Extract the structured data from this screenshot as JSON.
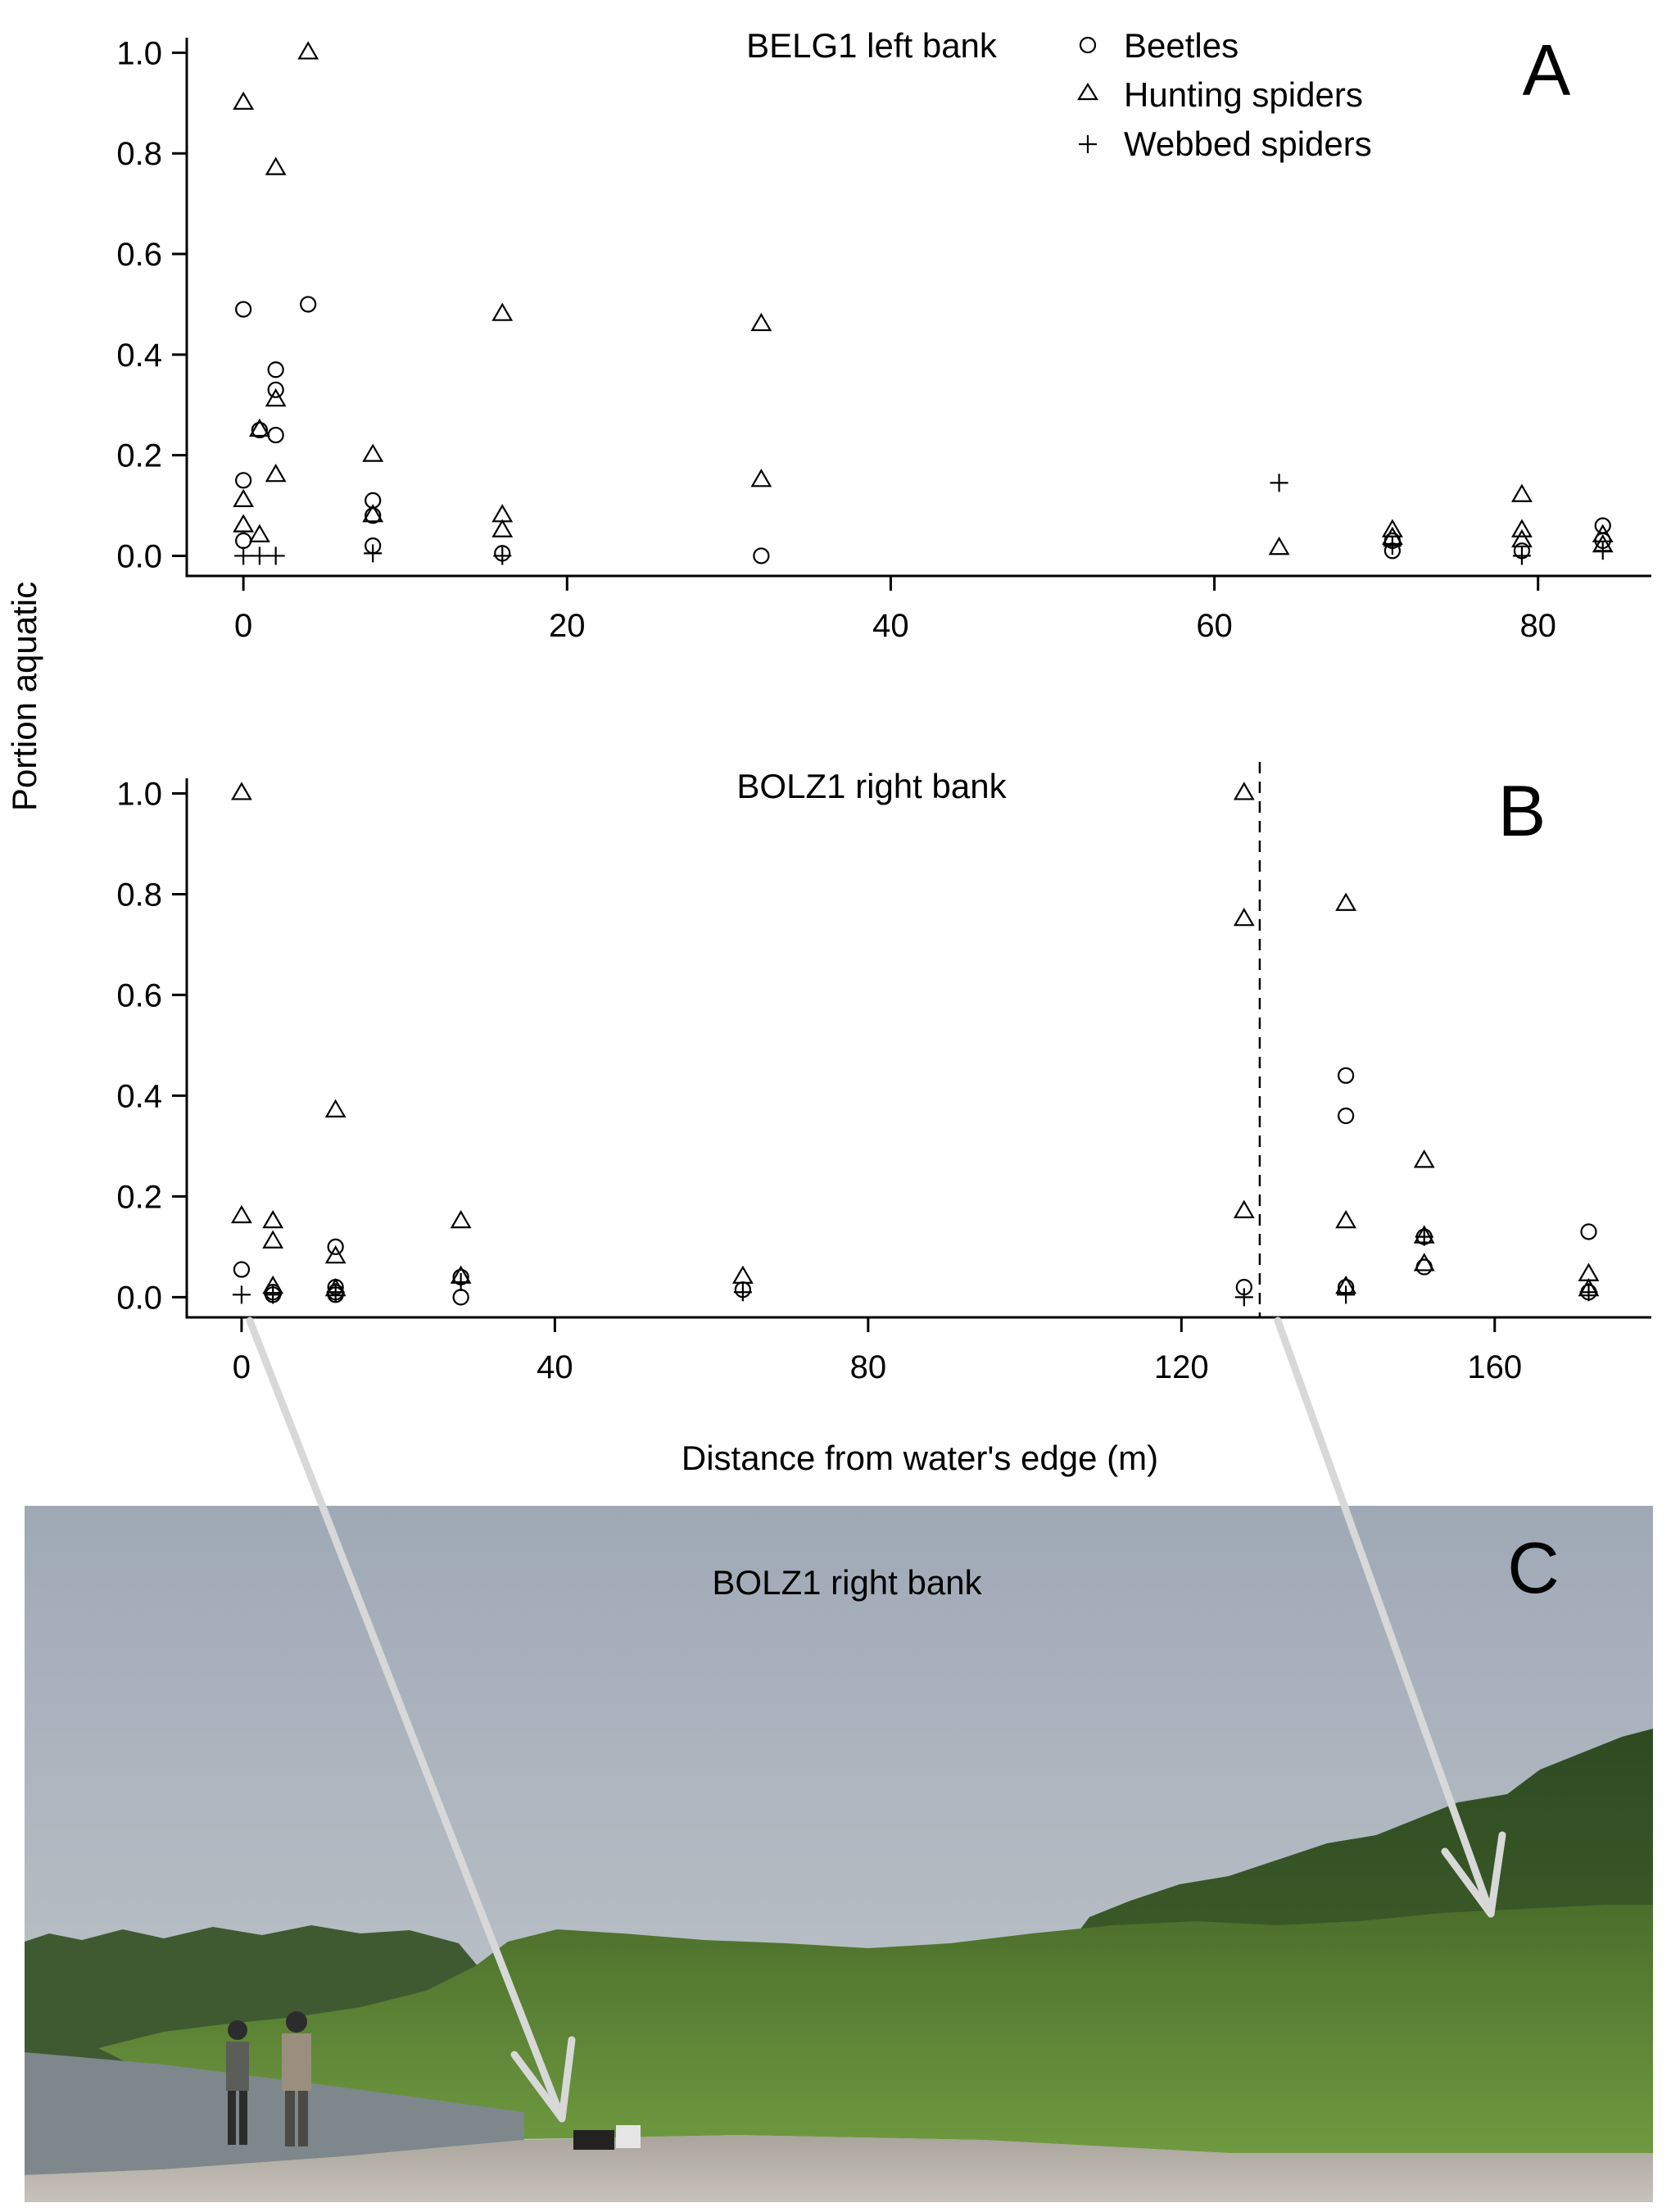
{
  "figure": {
    "ylabel_shared": "Portion aquatic",
    "xlabel": "Distance from water's edge (m)"
  },
  "legend": {
    "entries": [
      {
        "label": "Beetles",
        "marker": "circle"
      },
      {
        "label": "Hunting spiders",
        "marker": "triangle"
      },
      {
        "label": "Webbed spiders",
        "marker": "plus"
      }
    ]
  },
  "chart_data": [
    {
      "type": "scatter",
      "panel": "A",
      "title": "BELG1 left bank",
      "xlim": [
        -3.5,
        87
      ],
      "ylim": [
        -0.04,
        1.03
      ],
      "x_ticks": [
        0,
        20,
        40,
        60,
        80
      ],
      "y_ticks": [
        0.0,
        0.2,
        0.4,
        0.6,
        0.8,
        1.0
      ],
      "y_tick_labels": [
        "0.0",
        "0.2",
        "0.4",
        "0.6",
        "0.8",
        "1.0"
      ],
      "series": [
        {
          "name": "Beetles",
          "marker": "circle",
          "points": [
            [
              0,
              0.49
            ],
            [
              0,
              0.15
            ],
            [
              0,
              0.03
            ],
            [
              1,
              0.25
            ],
            [
              2,
              0.37
            ],
            [
              2,
              0.33
            ],
            [
              2,
              0.24
            ],
            [
              4,
              0.5
            ],
            [
              8,
              0.11
            ],
            [
              8,
              0.08
            ],
            [
              8,
              0.02
            ],
            [
              16,
              0.005
            ],
            [
              32,
              0.0
            ],
            [
              71,
              0.01
            ],
            [
              71,
              0.03
            ],
            [
              79,
              0.01
            ],
            [
              84,
              0.06
            ],
            [
              84,
              0.03
            ]
          ]
        },
        {
          "name": "Hunting spiders",
          "marker": "triangle",
          "points": [
            [
              0,
              0.9
            ],
            [
              0,
              0.11
            ],
            [
              0,
              0.06
            ],
            [
              1,
              0.25
            ],
            [
              1,
              0.04
            ],
            [
              2,
              0.77
            ],
            [
              2,
              0.31
            ],
            [
              2,
              0.16
            ],
            [
              4,
              1.0
            ],
            [
              8,
              0.2
            ],
            [
              8,
              0.08
            ],
            [
              16,
              0.48
            ],
            [
              16,
              0.08
            ],
            [
              16,
              0.05
            ],
            [
              32,
              0.46
            ],
            [
              32,
              0.15
            ],
            [
              64,
              0.015
            ],
            [
              71,
              0.05
            ],
            [
              71,
              0.035
            ],
            [
              79,
              0.12
            ],
            [
              79,
              0.05
            ],
            [
              79,
              0.03
            ],
            [
              84,
              0.04
            ],
            [
              84,
              0.02
            ]
          ]
        },
        {
          "name": "Webbed spiders",
          "marker": "plus",
          "points": [
            [
              0,
              0.0
            ],
            [
              1,
              0.0
            ],
            [
              2,
              0.0
            ],
            [
              8,
              0.005
            ],
            [
              16,
              0.0
            ],
            [
              64,
              0.145
            ],
            [
              71,
              0.02
            ],
            [
              79,
              0.0
            ],
            [
              84,
              0.01
            ]
          ]
        }
      ]
    },
    {
      "type": "scatter",
      "panel": "B",
      "title": "BOLZ1 right bank",
      "xlim": [
        -7,
        180
      ],
      "ylim": [
        -0.04,
        1.03
      ],
      "x_ticks": [
        0,
        40,
        80,
        120,
        160
      ],
      "y_ticks": [
        0.0,
        0.2,
        0.4,
        0.6,
        0.8,
        1.0
      ],
      "y_tick_labels": [
        "0.0",
        "0.2",
        "0.4",
        "0.6",
        "0.8",
        "1.0"
      ],
      "vline_x": 130,
      "series": [
        {
          "name": "Beetles",
          "marker": "circle",
          "points": [
            [
              0,
              0.055
            ],
            [
              4,
              0.01
            ],
            [
              4,
              0.005
            ],
            [
              12,
              0.1
            ],
            [
              12,
              0.02
            ],
            [
              12,
              0.01
            ],
            [
              12,
              0.005
            ],
            [
              28,
              0.0
            ],
            [
              28,
              0.04
            ],
            [
              64,
              0.015
            ],
            [
              128,
              0.02
            ],
            [
              141,
              0.44
            ],
            [
              141,
              0.36
            ],
            [
              141,
              0.02
            ],
            [
              151,
              0.06
            ],
            [
              151,
              0.12
            ],
            [
              172,
              0.13
            ],
            [
              172,
              0.01
            ]
          ]
        },
        {
          "name": "Hunting spiders",
          "marker": "triangle",
          "points": [
            [
              0,
              1.0
            ],
            [
              0,
              0.16
            ],
            [
              4,
              0.15
            ],
            [
              4,
              0.11
            ],
            [
              4,
              0.02
            ],
            [
              12,
              0.37
            ],
            [
              12,
              0.08
            ],
            [
              12,
              0.015
            ],
            [
              28,
              0.15
            ],
            [
              28,
              0.04
            ],
            [
              64,
              0.04
            ],
            [
              128,
              1.0
            ],
            [
              128,
              0.75
            ],
            [
              128,
              0.17
            ],
            [
              141,
              0.78
            ],
            [
              141,
              0.15
            ],
            [
              141,
              0.02
            ],
            [
              151,
              0.27
            ],
            [
              151,
              0.12
            ],
            [
              151,
              0.065
            ],
            [
              172,
              0.045
            ],
            [
              172,
              0.015
            ]
          ]
        },
        {
          "name": "Webbed spiders",
          "marker": "plus",
          "points": [
            [
              0,
              0.005
            ],
            [
              4,
              0.005
            ],
            [
              12,
              0.01
            ],
            [
              28,
              0.03
            ],
            [
              64,
              0.01
            ],
            [
              128,
              0.0
            ],
            [
              141,
              0.005
            ],
            [
              151,
              0.12
            ],
            [
              172,
              0.01
            ]
          ]
        }
      ]
    }
  ],
  "photo": {
    "panel": "C",
    "title": "BOLZ1 right bank",
    "sky_color": "#b7bec6",
    "vegetation_color": "#5f8a3a",
    "gravel_color": "#b8b3ab",
    "water_color": "#7b848a",
    "arrow_color": "#d8d8d8"
  }
}
